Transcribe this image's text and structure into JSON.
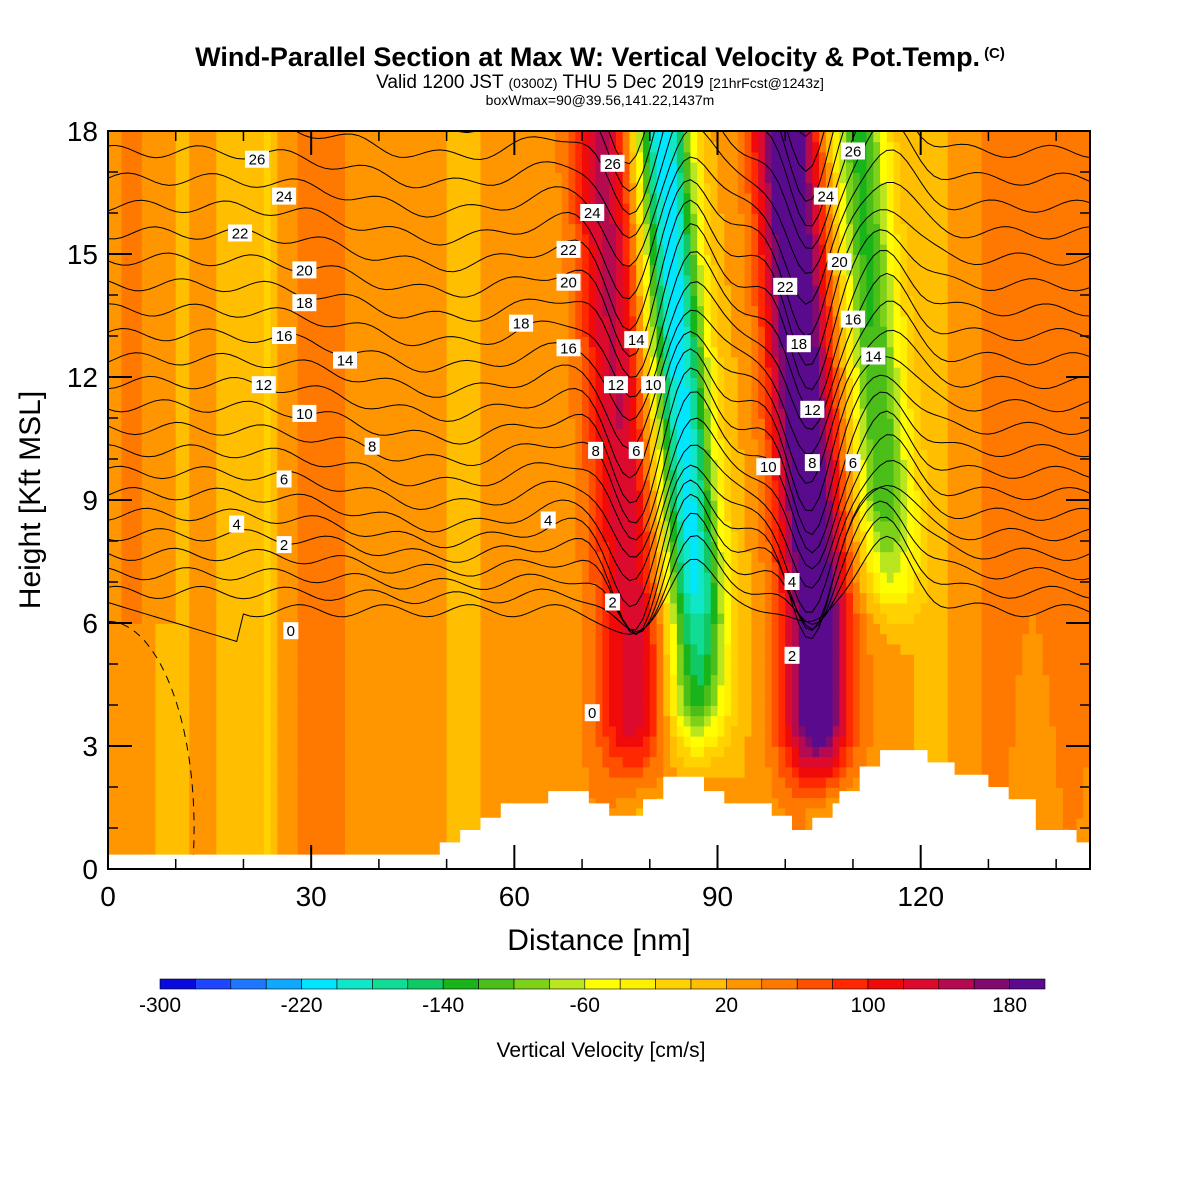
{
  "header": {
    "title": "Wind-Parallel Section at Max W: Vertical Velocity & Pot.Temp.",
    "title_badge": "(C)",
    "valid_prefix": "Valid 1200 JST",
    "valid_utc": "(0300Z)",
    "valid_date": "THU 5 Dec 2019",
    "valid_fcst": "[21hrFcst@1243z]",
    "box_info": "boxWmax=90@39.56,141.22,1437m"
  },
  "chart_data": {
    "type": "heatmap",
    "xlabel": "Distance [nm]",
    "ylabel": "Height [Kft MSL]",
    "xlim": [
      0,
      145
    ],
    "ylim": [
      0,
      18
    ],
    "x_ticks": [
      0,
      30,
      60,
      90,
      120
    ],
    "y_ticks": [
      0,
      3,
      6,
      9,
      12,
      15,
      18
    ],
    "colorbar": {
      "title": "Vertical Velocity [cm/s]",
      "min": -300,
      "max": 200,
      "step": 20,
      "tick_labels": [
        "-300",
        "-220",
        "-140",
        "-60",
        "20",
        "100",
        "180"
      ],
      "tick_values": [
        -300,
        -220,
        -140,
        -60,
        20,
        100,
        180
      ],
      "colors": [
        "#0a0adc",
        "#1e46ff",
        "#1e78ff",
        "#10a8ff",
        "#00e6ff",
        "#10e6c8",
        "#10dc96",
        "#10c864",
        "#19b419",
        "#4bbe19",
        "#7dd219",
        "#b9e61e",
        "#ffff00",
        "#fff000",
        "#ffd200",
        "#ffbe00",
        "#ff9600",
        "#ff7800",
        "#ff5000",
        "#ff2800",
        "#f00a0a",
        "#dc0a2d",
        "#b40a50",
        "#820a6e",
        "#5a0a8c"
      ]
    },
    "features": [
      {
        "kind": "updraft",
        "x_center": 78,
        "w_max": 110,
        "from_height": 1.5,
        "to_height": 18
      },
      {
        "kind": "downdraft",
        "x_center": 87,
        "w_min": -240,
        "from_height": 2,
        "to_height": 18
      },
      {
        "kind": "updraft",
        "x_center": 105,
        "w_max": 190,
        "from_height": 1.5,
        "to_height": 18
      },
      {
        "kind": "downdraft",
        "x_center": 116,
        "w_min": -150,
        "from_height": 5,
        "to_height": 18
      }
    ],
    "terrain_kft": [
      [
        0,
        0.35
      ],
      [
        48,
        0.35
      ],
      [
        49,
        0.65
      ],
      [
        51,
        0.65
      ],
      [
        52,
        0.95
      ],
      [
        54,
        0.95
      ],
      [
        55,
        1.25
      ],
      [
        57,
        1.25
      ],
      [
        58,
        1.6
      ],
      [
        64,
        1.6
      ],
      [
        65,
        1.9
      ],
      [
        70,
        1.9
      ],
      [
        71,
        1.6
      ],
      [
        73,
        1.6
      ],
      [
        74,
        1.3
      ],
      [
        78,
        1.3
      ],
      [
        79,
        1.7
      ],
      [
        81,
        1.7
      ],
      [
        82,
        2.25
      ],
      [
        87,
        2.25
      ],
      [
        88,
        1.9
      ],
      [
        90,
        1.9
      ],
      [
        91,
        1.6
      ],
      [
        97,
        1.6
      ],
      [
        98,
        1.3
      ],
      [
        100,
        1.3
      ],
      [
        101,
        0.95
      ],
      [
        103,
        0.95
      ],
      [
        104,
        1.25
      ],
      [
        106,
        1.25
      ],
      [
        107,
        1.6
      ],
      [
        108,
        1.9
      ],
      [
        110,
        1.9
      ],
      [
        111,
        2.5
      ],
      [
        113,
        2.5
      ],
      [
        114,
        2.9
      ],
      [
        120,
        2.9
      ],
      [
        121,
        2.6
      ],
      [
        124,
        2.6
      ],
      [
        125,
        2.3
      ],
      [
        129,
        2.3
      ],
      [
        130,
        2.0
      ],
      [
        132,
        2.0
      ],
      [
        133,
        1.7
      ],
      [
        136,
        1.7
      ],
      [
        137,
        0.95
      ],
      [
        142,
        0.95
      ],
      [
        143,
        0.65
      ],
      [
        145,
        0.65
      ]
    ],
    "contour_labels": [
      {
        "text": "26",
        "x": 22,
        "y": 17.3
      },
      {
        "text": "24",
        "x": 26,
        "y": 16.4
      },
      {
        "text": "22",
        "x": 19.5,
        "y": 15.5
      },
      {
        "text": "20",
        "x": 29,
        "y": 14.6
      },
      {
        "text": "18",
        "x": 29,
        "y": 13.8
      },
      {
        "text": "16",
        "x": 26,
        "y": 13.0
      },
      {
        "text": "14",
        "x": 35,
        "y": 12.4
      },
      {
        "text": "12",
        "x": 23,
        "y": 11.8
      },
      {
        "text": "10",
        "x": 29,
        "y": 11.1
      },
      {
        "text": "8",
        "x": 39,
        "y": 10.3
      },
      {
        "text": "6",
        "x": 26,
        "y": 9.5
      },
      {
        "text": "4",
        "x": 19,
        "y": 8.4
      },
      {
        "text": "2",
        "x": 26,
        "y": 7.9
      },
      {
        "text": "0",
        "x": 27,
        "y": 5.8
      },
      {
        "text": "26",
        "x": 74.5,
        "y": 17.2
      },
      {
        "text": "24",
        "x": 71.5,
        "y": 16.0
      },
      {
        "text": "22",
        "x": 68,
        "y": 15.1
      },
      {
        "text": "20",
        "x": 68,
        "y": 14.3
      },
      {
        "text": "18",
        "x": 61,
        "y": 13.3
      },
      {
        "text": "16",
        "x": 68,
        "y": 12.7
      },
      {
        "text": "14",
        "x": 78,
        "y": 12.9
      },
      {
        "text": "12",
        "x": 75,
        "y": 11.8
      },
      {
        "text": "10",
        "x": 80.5,
        "y": 11.8
      },
      {
        "text": "8",
        "x": 72,
        "y": 10.2
      },
      {
        "text": "6",
        "x": 78,
        "y": 10.2
      },
      {
        "text": "4",
        "x": 65,
        "y": 8.5
      },
      {
        "text": "2",
        "x": 74.5,
        "y": 6.5
      },
      {
        "text": "0",
        "x": 71.5,
        "y": 3.8
      },
      {
        "text": "26",
        "x": 110,
        "y": 17.5
      },
      {
        "text": "24",
        "x": 106,
        "y": 16.4
      },
      {
        "text": "22",
        "x": 100,
        "y": 14.2
      },
      {
        "text": "20",
        "x": 108,
        "y": 14.8
      },
      {
        "text": "18",
        "x": 102,
        "y": 12.8
      },
      {
        "text": "16",
        "x": 110,
        "y": 13.4
      },
      {
        "text": "14",
        "x": 113,
        "y": 12.5
      },
      {
        "text": "12",
        "x": 104,
        "y": 11.2
      },
      {
        "text": "10",
        "x": 97.5,
        "y": 9.8
      },
      {
        "text": "8",
        "x": 104,
        "y": 9.9
      },
      {
        "text": "6",
        "x": 110,
        "y": 9.9
      },
      {
        "text": "4",
        "x": 101,
        "y": 7.0
      },
      {
        "text": "2",
        "x": 101,
        "y": 5.2
      }
    ]
  }
}
